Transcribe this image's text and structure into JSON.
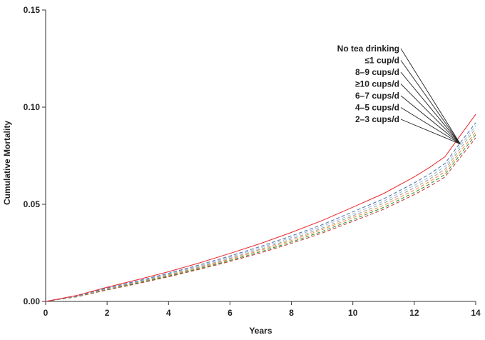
{
  "chart_data": {
    "type": "line",
    "title": "",
    "xlabel": "Years",
    "ylabel": "Cumulative Mortality",
    "xlim": [
      0,
      14
    ],
    "ylim": [
      0,
      0.15
    ],
    "xticks": [
      0,
      2,
      4,
      6,
      8,
      10,
      12,
      14
    ],
    "yticks": [
      "0.00",
      "0.05",
      "0.10",
      "0.15"
    ],
    "grid": false,
    "legend_placement": "top-right",
    "x": [
      0,
      0.5,
      1,
      2,
      3,
      4,
      5,
      6,
      7,
      8,
      9,
      10,
      11,
      12,
      12.5,
      13,
      13.5,
      14
    ],
    "series": [
      {
        "name": "No tea drinking",
        "color": "#e8262b",
        "style": "solid",
        "values": [
          0,
          0.0015,
          0.003,
          0.0073,
          0.0112,
          0.0153,
          0.0198,
          0.0247,
          0.0298,
          0.0355,
          0.0416,
          0.0485,
          0.0555,
          0.0641,
          0.069,
          0.0745,
          0.0855,
          0.0963
        ]
      },
      {
        "name": "≤1 cup/d",
        "color": "#4a6fa5",
        "style": "dashed",
        "values": [
          0,
          0.0014,
          0.0028,
          0.0069,
          0.0106,
          0.0145,
          0.0188,
          0.0234,
          0.0283,
          0.0337,
          0.0395,
          0.0461,
          0.0528,
          0.061,
          0.0656,
          0.071,
          0.0818,
          0.092
        ]
      },
      {
        "name": "8–9 cups/d",
        "color": "#9bbad6",
        "style": "dashed",
        "values": [
          0,
          0.0014,
          0.0027,
          0.0067,
          0.0103,
          0.0141,
          0.0183,
          0.0228,
          0.0276,
          0.0329,
          0.0386,
          0.045,
          0.0516,
          0.0597,
          0.0642,
          0.0695,
          0.0802,
          0.0905
        ]
      },
      {
        "name": "≥10 cups/d",
        "color": "#9a9a9a",
        "style": "dashed",
        "values": [
          0,
          0.0013,
          0.0026,
          0.0065,
          0.01,
          0.0137,
          0.0178,
          0.0222,
          0.0269,
          0.0321,
          0.0377,
          0.044,
          0.0505,
          0.0585,
          0.063,
          0.0681,
          0.0788,
          0.089
        ]
      },
      {
        "name": "6–7 cups/d",
        "color": "#f28c28",
        "style": "dashed",
        "values": [
          0,
          0.0013,
          0.0025,
          0.0063,
          0.0098,
          0.0134,
          0.0174,
          0.0217,
          0.0263,
          0.0314,
          0.0369,
          0.0431,
          0.0494,
          0.0573,
          0.0617,
          0.0668,
          0.0772,
          0.0872
        ]
      },
      {
        "name": "4–5 cups/d",
        "color": "#2e8b3e",
        "style": "dashed",
        "values": [
          0,
          0.0012,
          0.0024,
          0.0061,
          0.0095,
          0.013,
          0.0169,
          0.0211,
          0.0256,
          0.0306,
          0.036,
          0.0421,
          0.0484,
          0.0561,
          0.0604,
          0.0654,
          0.0757,
          0.0858
        ]
      },
      {
        "name": "2–3 cups/d",
        "color": "#c0392b",
        "style": "dashed",
        "values": [
          0,
          0.0012,
          0.0023,
          0.0059,
          0.0092,
          0.0127,
          0.0165,
          0.0206,
          0.025,
          0.0299,
          0.0352,
          0.0412,
          0.0474,
          0.055,
          0.0592,
          0.0641,
          0.0742,
          0.0842
        ]
      }
    ],
    "annotation_target": {
      "x": 13.5,
      "y": 0.081
    }
  }
}
